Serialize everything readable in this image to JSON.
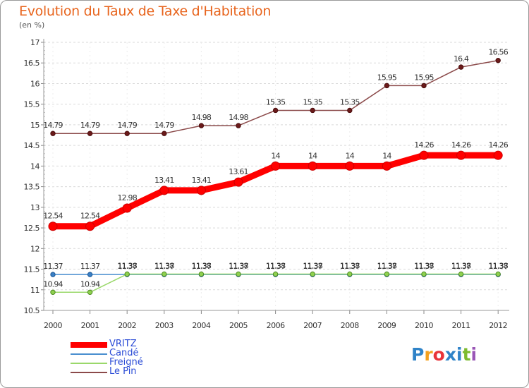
{
  "title": "Evolution du Taux de Taxe d'Habitation",
  "subtitle": "(en %)",
  "logo": {
    "letters": [
      "P",
      "r",
      "o",
      "x",
      "i",
      "t",
      "i"
    ],
    "colors": [
      "#2f83c8",
      "#f4a11e",
      "#e8343a",
      "#2f83c8",
      "#2f83c8",
      "#7dbb2f",
      "#9a56b6"
    ]
  },
  "chart_data": {
    "type": "line",
    "title": "Evolution du Taux de Taxe d'Habitation",
    "ylabel": "(en %)",
    "xlabel": "",
    "ylim": [
      10.5,
      17
    ],
    "x": [
      "2000",
      "2001",
      "2002",
      "2003",
      "2004",
      "2005",
      "2006",
      "2007",
      "2008",
      "2009",
      "2010",
      "2011",
      "2012"
    ],
    "y_ticks": [
      "10.5",
      "11",
      "11.5",
      "12",
      "12.5",
      "13",
      "13.5",
      "14",
      "14.5",
      "15",
      "15.5",
      "16",
      "16.5",
      "17"
    ],
    "series": [
      {
        "name": "VRITZ",
        "color": "#ff0000",
        "values": [
          12.54,
          12.54,
          12.98,
          13.41,
          13.41,
          13.61,
          14,
          14,
          14,
          14,
          14.26,
          14.26,
          14.26
        ],
        "labels": [
          "12.54",
          "12.54",
          "12.98",
          "13.41",
          "13.41",
          "13.61",
          "14",
          "14",
          "14",
          "14",
          "14.26",
          "14.26",
          "14.26"
        ]
      },
      {
        "name": "Candé",
        "color": "#4a8fcf",
        "values": [
          11.37,
          11.37,
          11.37,
          11.37,
          11.37,
          11.37,
          11.37,
          11.37,
          11.37,
          11.37,
          11.37,
          11.37,
          11.37
        ],
        "labels": [
          "11.37",
          "11.37",
          "11.37",
          "11.37",
          "11.37",
          "11.37",
          "11.37",
          "11.37",
          "11.37",
          "11.37",
          "11.37",
          "11.37",
          "11.37"
        ]
      },
      {
        "name": "Freigné",
        "color": "#9ad86a",
        "values": [
          10.94,
          10.94,
          11.38,
          11.38,
          11.38,
          11.38,
          11.38,
          11.38,
          11.38,
          11.38,
          11.38,
          11.38,
          11.38
        ],
        "labels": [
          "10.94",
          "10.94",
          "11.38",
          "11.38",
          "11.38",
          "11.38",
          "11.38",
          "11.38",
          "11.38",
          "11.38",
          "11.38",
          "11.38",
          "11.38"
        ]
      },
      {
        "name": "Le Pin",
        "color": "#8b4a4a",
        "values": [
          14.79,
          14.79,
          14.79,
          14.79,
          14.98,
          14.98,
          15.35,
          15.35,
          15.35,
          15.95,
          15.95,
          16.4,
          16.56
        ],
        "labels": [
          "14.79",
          "14.79",
          "14.79",
          "14.79",
          "14.98",
          "14.98",
          "15.35",
          "15.35",
          "15.35",
          "15.95",
          "15.95",
          "16.4",
          "16.56"
        ]
      }
    ]
  }
}
